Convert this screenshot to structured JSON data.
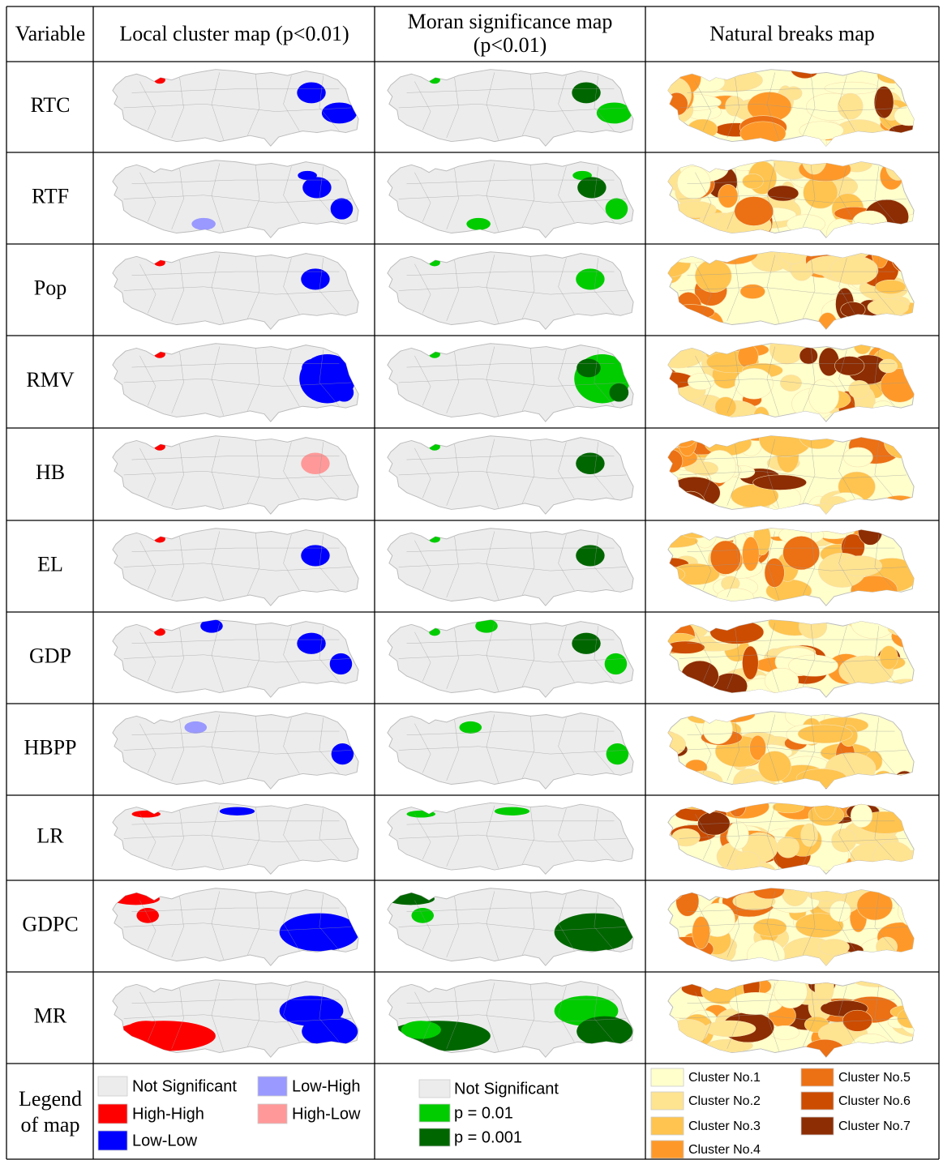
{
  "header": [
    "Variable",
    "Local cluster map (p<0.01)",
    [
      "Moran significance map",
      "(p<0.01)"
    ],
    "Natural breaks map"
  ],
  "rows": [
    "RTC",
    "RTF",
    "Pop",
    "RMV",
    "HB",
    "EL",
    "GDP",
    "HBPP",
    "LR",
    "GDPC",
    "MR"
  ],
  "legend": {
    "title": [
      "Legend",
      "of map"
    ],
    "local": [
      {
        "label": "Not Significant",
        "color": "#ececec"
      },
      {
        "label": "High-High",
        "color": "#ff0000"
      },
      {
        "label": "Low-Low",
        "color": "#0000ff"
      },
      {
        "label": "Low-High",
        "color": "#9999ff"
      },
      {
        "label": "High-Low",
        "color": "#ff9999"
      }
    ],
    "moran": [
      {
        "label": "Not Significant",
        "color": "#ececec"
      },
      {
        "label": "p = 0.01",
        "color": "#00cc00"
      },
      {
        "label": "p = 0.001",
        "color": "#006600"
      }
    ],
    "natural": [
      {
        "label": "Cluster No.1",
        "color": "#ffffcc"
      },
      {
        "label": "Cluster No.2",
        "color": "#fee391"
      },
      {
        "label": "Cluster No.3",
        "color": "#fec44f"
      },
      {
        "label": "Cluster No.4",
        "color": "#fe9929"
      },
      {
        "label": "Cluster No.5",
        "color": "#ec7014"
      },
      {
        "label": "Cluster No.6",
        "color": "#cc4c02"
      },
      {
        "label": "Cluster No.7",
        "color": "#8c2d04"
      }
    ]
  }
}
